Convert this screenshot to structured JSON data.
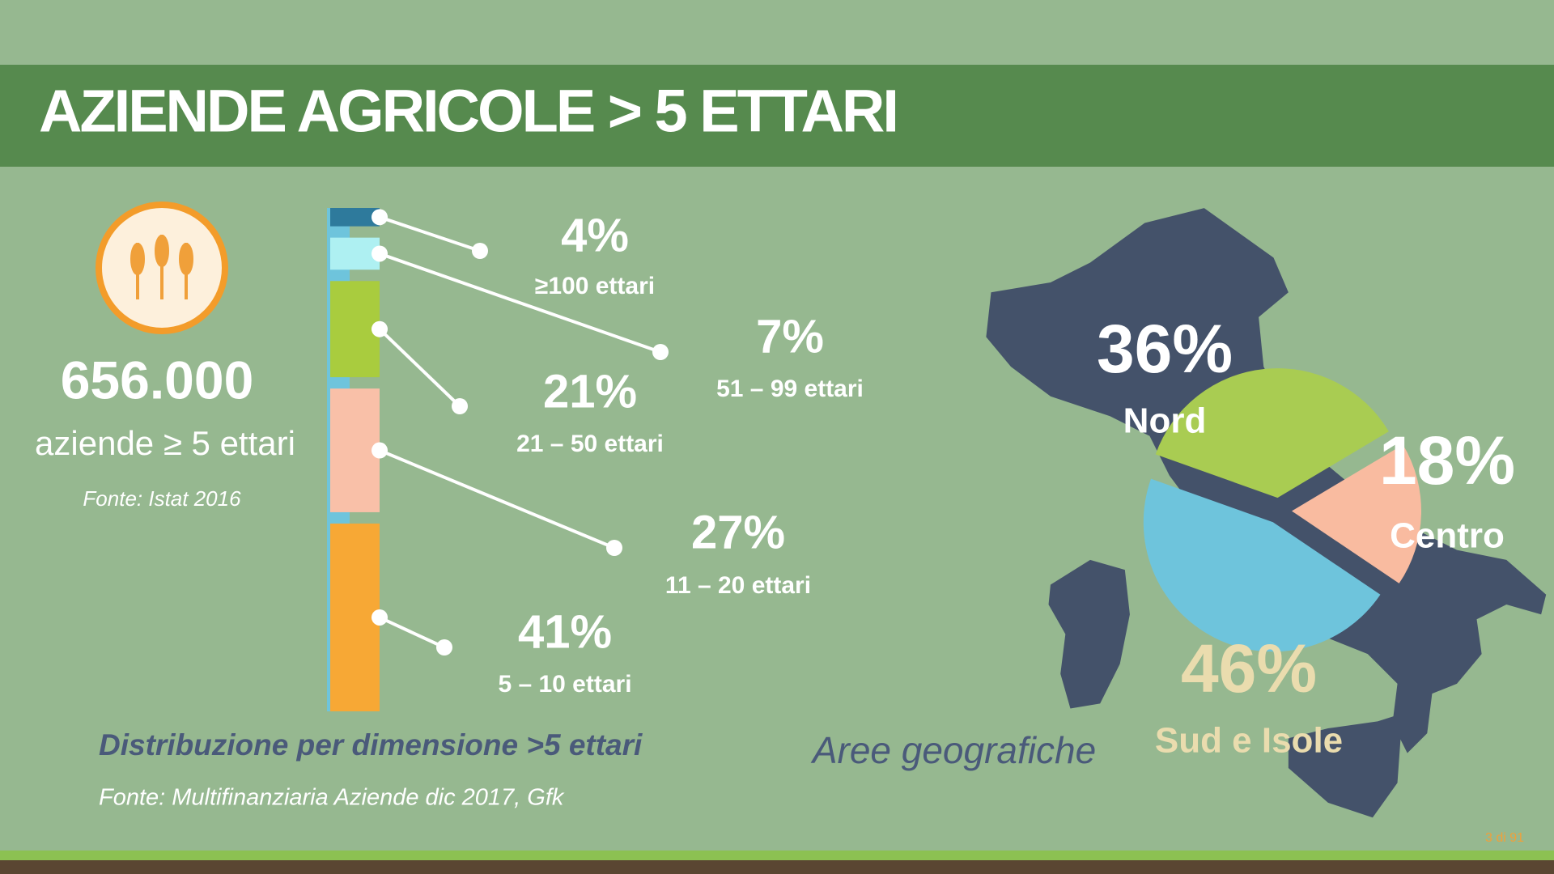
{
  "header": {
    "title": "AZIENDE AGRICOLE > 5 ETTARI"
  },
  "summary": {
    "value": "656.000",
    "label": "aziende ≥ 5 ettari",
    "source": "Fonte: Istat 2016"
  },
  "chart_data": [
    {
      "type": "stacked-bar",
      "title": "Distribuzione per dimensione >5 ettari",
      "source": "Fonte: Multifinanziaria Aziende dic 2017, Gfk",
      "categories": [
        "≥100 ettari",
        "51 – 99 ettari",
        "21 – 50 ettari",
        "11 – 20 ettari",
        "5 – 10 ettari"
      ],
      "values": [
        4,
        7,
        21,
        27,
        41
      ],
      "value_labels": [
        "4%",
        "7%",
        "21%",
        "27%",
        "41%"
      ],
      "colors": [
        "#2e7a9c",
        "#aef0f2",
        "#a9cc3e",
        "#f9c0a8",
        "#f7a835"
      ]
    },
    {
      "type": "pie",
      "title": "Aree geografiche",
      "categories": [
        "Nord",
        "Centro",
        "Sud e Isole"
      ],
      "values": [
        36,
        18,
        46
      ],
      "value_labels": [
        "36%",
        "18%",
        "46%"
      ],
      "colors": [
        "#a9cc52",
        "#f9bba0",
        "#6ec4dc"
      ]
    }
  ],
  "footer": {
    "page": "3 di 91"
  }
}
